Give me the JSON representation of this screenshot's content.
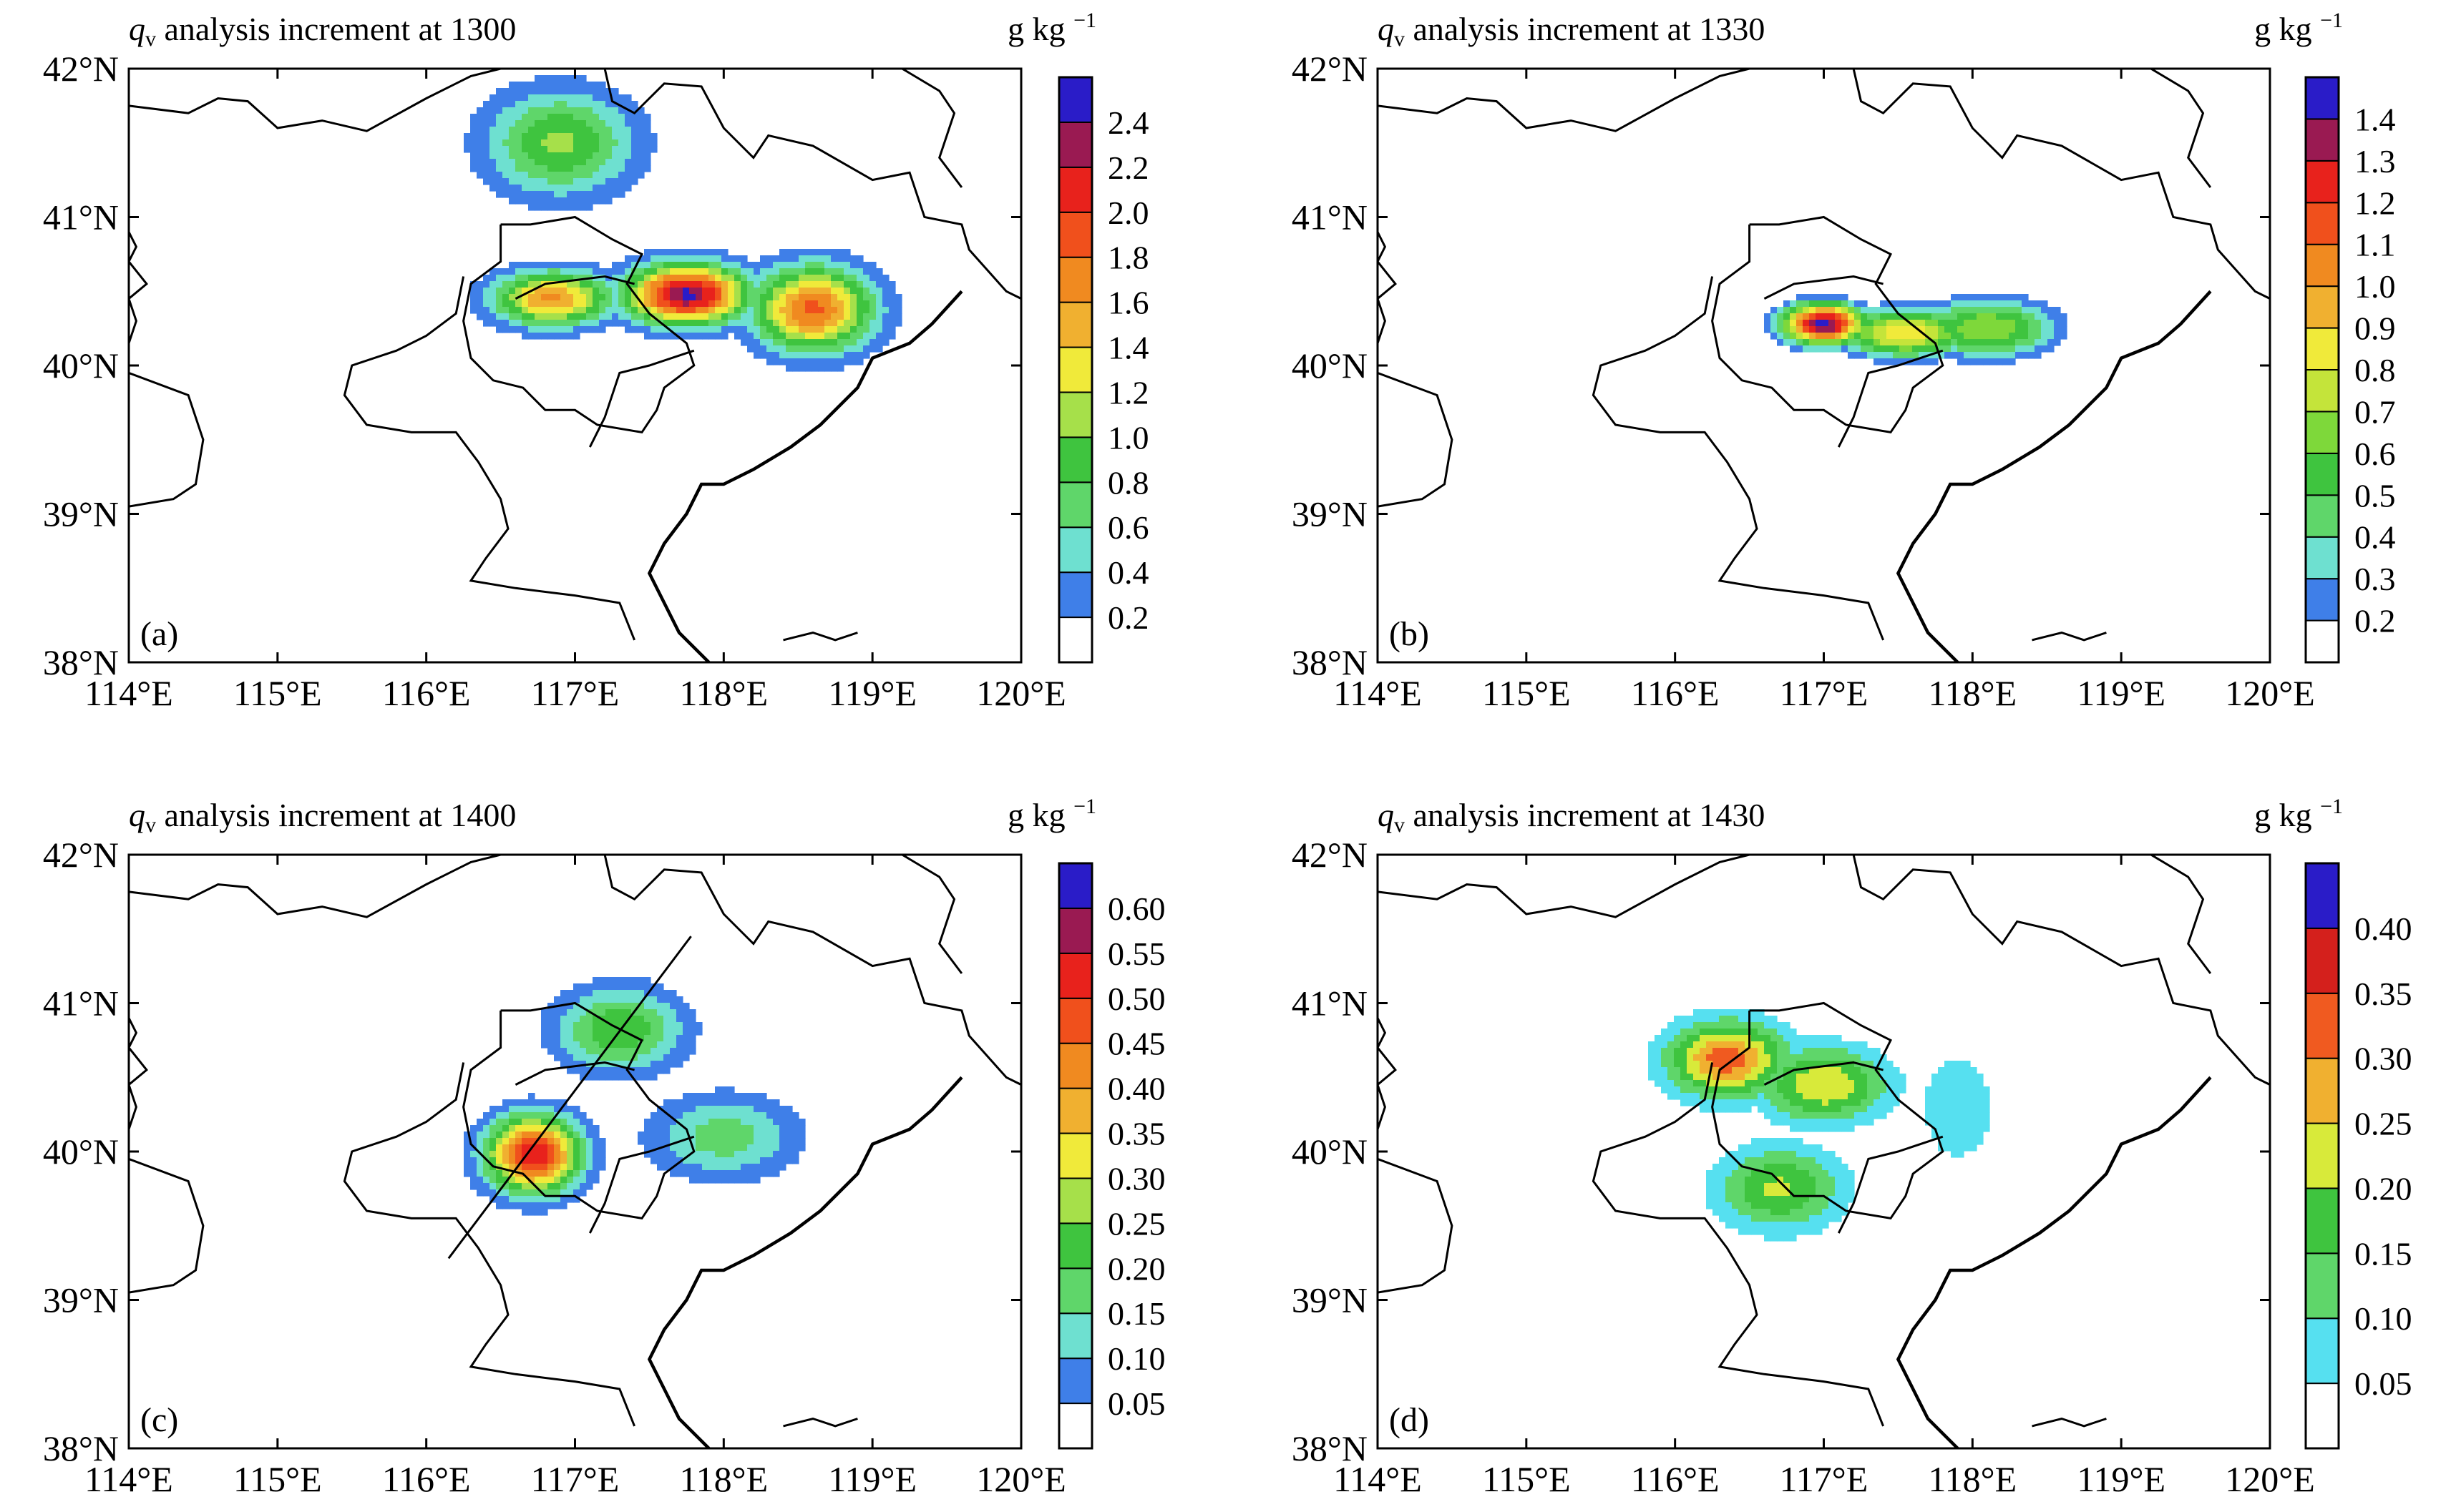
{
  "unit": {
    "base": "g kg",
    "sup": "−1"
  },
  "lon_labels": [
    "114°E",
    "115°E",
    "116°E",
    "117°E",
    "118°E",
    "119°E",
    "120°E"
  ],
  "lat_labels": [
    "38°N",
    "39°N",
    "40°N",
    "41°N",
    "42°N"
  ],
  "panels": [
    {
      "label": "(a)",
      "time": "1300",
      "var": "q",
      "sub": "v",
      "text": "analysis increment at",
      "colorbar": [
        "0.2",
        "0.4",
        "0.6",
        "0.8",
        "1.0",
        "1.2",
        "1.4",
        "1.6",
        "1.8",
        "2.0",
        "2.2",
        "2.4"
      ],
      "colors": [
        "#ffffff",
        "#3f7fe8",
        "#6ee0d0",
        "#5fd66a",
        "#3fc43f",
        "#a6e04a",
        "#f0ea3a",
        "#f0b030",
        "#f08a20",
        "#f0501c",
        "#e8221c",
        "#9a1a52",
        "#2a1cc8"
      ],
      "increments": [
        {
          "lon": 117.75,
          "lat": 40.48,
          "peak": 2.45,
          "sx": 0.28,
          "sy": 0.14
        },
        {
          "lon": 116.85,
          "lat": 40.45,
          "peak": 1.65,
          "sx": 0.28,
          "sy": 0.13
        },
        {
          "lon": 118.6,
          "lat": 40.38,
          "peak": 1.85,
          "sx": 0.28,
          "sy": 0.2
        },
        {
          "lon": 116.9,
          "lat": 41.5,
          "peak": 1.05,
          "sx": 0.35,
          "sy": 0.25
        }
      ]
    },
    {
      "label": "(b)",
      "time": "1330",
      "var": "q",
      "sub": "v",
      "text": "analysis increment at",
      "colorbar": [
        "0.2",
        "0.3",
        "0.4",
        "0.5",
        "0.6",
        "0.7",
        "0.8",
        "0.9",
        "1.0",
        "1.1",
        "1.2",
        "1.3",
        "1.4"
      ],
      "colors": [
        "#ffffff",
        "#3f7fe8",
        "#6ee0d0",
        "#5fd66a",
        "#3fc43f",
        "#7ed83a",
        "#c4e43a",
        "#f0ea3a",
        "#f0b030",
        "#f08a20",
        "#f0501c",
        "#e8221c",
        "#9a1a52",
        "#2a1cc8"
      ],
      "increments": [
        {
          "lon": 117.0,
          "lat": 40.28,
          "peak": 1.45,
          "sx": 0.2,
          "sy": 0.1
        },
        {
          "lon": 117.55,
          "lat": 40.22,
          "peak": 0.9,
          "sx": 0.32,
          "sy": 0.12
        },
        {
          "lon": 118.1,
          "lat": 40.25,
          "peak": 0.7,
          "sx": 0.35,
          "sy": 0.15
        }
      ]
    },
    {
      "label": "(c)",
      "time": "1400",
      "var": "q",
      "sub": "v",
      "text": "analysis increment at",
      "colorbar": [
        "0.05",
        "0.10",
        "0.15",
        "0.20",
        "0.25",
        "0.30",
        "0.35",
        "0.40",
        "0.45",
        "0.50",
        "0.55",
        "0.60"
      ],
      "colors": [
        "#ffffff",
        "#3f7fe8",
        "#6ee0d0",
        "#5fd66a",
        "#3fc43f",
        "#a6e04a",
        "#f0ea3a",
        "#f0b030",
        "#f08a20",
        "#f0501c",
        "#e8221c",
        "#9a1a52",
        "#2a1cc8"
      ],
      "increments": [
        {
          "lon": 116.72,
          "lat": 39.98,
          "peak": 0.55,
          "sx": 0.22,
          "sy": 0.18
        },
        {
          "lon": 117.3,
          "lat": 40.82,
          "peak": 0.25,
          "sx": 0.3,
          "sy": 0.2
        },
        {
          "lon": 118.0,
          "lat": 40.1,
          "peak": 0.18,
          "sx": 0.35,
          "sy": 0.2
        }
      ],
      "section_line": [
        [
          116.15,
          39.28
        ],
        [
          117.78,
          41.45
        ]
      ]
    },
    {
      "label": "(d)",
      "time": "1430",
      "var": "q",
      "sub": "v",
      "text": "analysis increment at",
      "colorbar": [
        "0.05",
        "0.10",
        "0.15",
        "0.20",
        "0.25",
        "0.30",
        "0.35",
        "0.40"
      ],
      "colors": [
        "#ffffff",
        "#56e0f0",
        "#5fd66a",
        "#3fc43f",
        "#d8ea3a",
        "#f0b030",
        "#f05a20",
        "#d4201c",
        "#2a1cc8"
      ],
      "increments": [
        {
          "lon": 116.35,
          "lat": 40.62,
          "peak": 0.33,
          "sx": 0.28,
          "sy": 0.18
        },
        {
          "lon": 117.0,
          "lat": 40.45,
          "peak": 0.25,
          "sx": 0.3,
          "sy": 0.18
        },
        {
          "lon": 116.7,
          "lat": 39.75,
          "peak": 0.21,
          "sx": 0.3,
          "sy": 0.2
        },
        {
          "lon": 117.9,
          "lat": 40.3,
          "peak": 0.09,
          "sx": 0.2,
          "sy": 0.3
        }
      ]
    }
  ]
}
